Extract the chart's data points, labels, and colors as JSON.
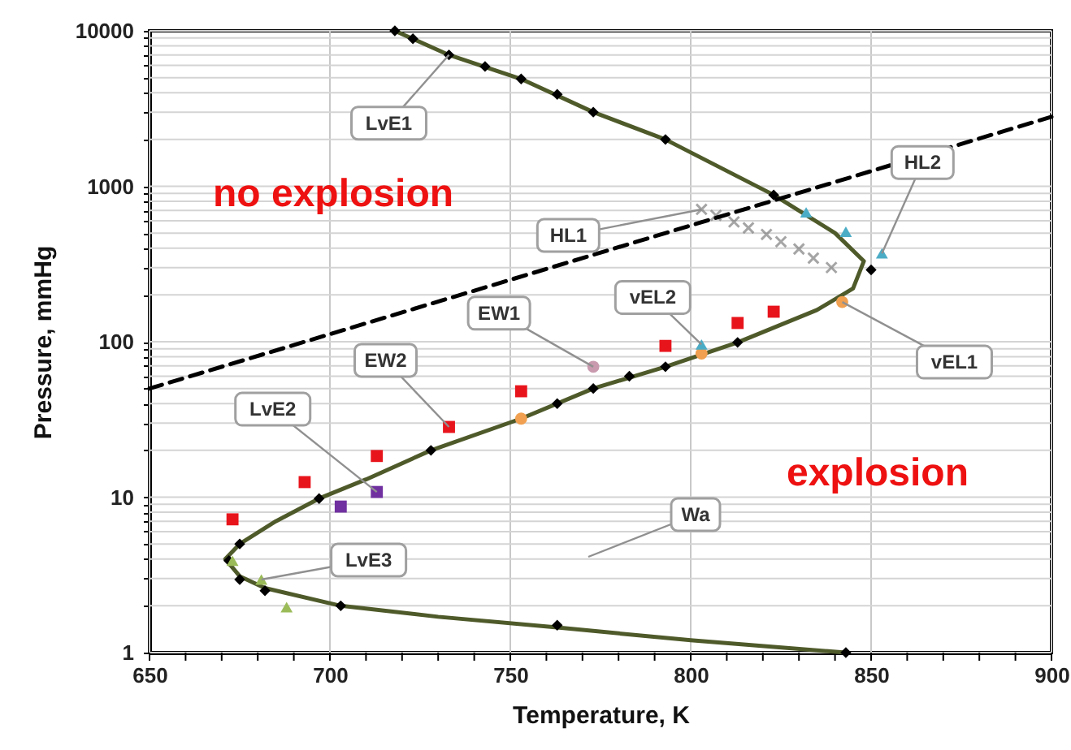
{
  "chart_data": {
    "type": "scatter",
    "xlabel": "Temperature, K",
    "ylabel": "Pressure, mmHg",
    "log": "y",
    "grid": true,
    "xlim": [
      650,
      900
    ],
    "ylim": [
      1,
      10000
    ],
    "xticks": [
      650,
      {
        "value": 660,
        "label": null
      },
      {
        "value": 670,
        "label": null
      },
      {
        "value": 680,
        "label": null
      },
      {
        "value": 690,
        "label": null
      },
      700,
      {
        "value": 710,
        "label": null
      },
      {
        "value": 720,
        "label": null
      },
      {
        "value": 730,
        "label": null
      },
      {
        "value": 740,
        "label": null
      },
      750,
      {
        "value": 760,
        "label": null
      },
      {
        "value": 770,
        "label": null
      },
      {
        "value": 780,
        "label": null
      },
      {
        "value": 790,
        "label": null
      },
      800,
      {
        "value": 810,
        "label": null
      },
      {
        "value": 820,
        "label": null
      },
      {
        "value": 830,
        "label": null
      },
      {
        "value": 840,
        "label": null
      },
      850,
      {
        "value": 860,
        "label": null
      },
      {
        "value": 870,
        "label": null
      },
      {
        "value": 880,
        "label": null
      },
      {
        "value": 890,
        "label": null
      },
      900
    ],
    "yticks": [
      1,
      {
        "value": 2,
        "label": null
      },
      {
        "value": 3,
        "label": null
      },
      {
        "value": 4,
        "label": null
      },
      {
        "value": 5,
        "label": null
      },
      {
        "value": 6,
        "label": null
      },
      {
        "value": 7,
        "label": null
      },
      {
        "value": 8,
        "label": null
      },
      {
        "value": 9,
        "label": null
      },
      10,
      {
        "value": 20,
        "label": null
      },
      {
        "value": 30,
        "label": null
      },
      {
        "value": 40,
        "label": null
      },
      {
        "value": 50,
        "label": null
      },
      {
        "value": 60,
        "label": null
      },
      {
        "value": 70,
        "label": null
      },
      {
        "value": 80,
        "label": null
      },
      {
        "value": 90,
        "label": null
      },
      100,
      {
        "value": 200,
        "label": null
      },
      {
        "value": 300,
        "label": null
      },
      {
        "value": 400,
        "label": null
      },
      {
        "value": 500,
        "label": null
      },
      {
        "value": 600,
        "label": null
      },
      {
        "value": 700,
        "label": null
      },
      {
        "value": 800,
        "label": null
      },
      {
        "value": 900,
        "label": null
      },
      1000,
      {
        "value": 2000,
        "label": null
      },
      {
        "value": 3000,
        "label": null
      },
      {
        "value": 4000,
        "label": null
      },
      {
        "value": 5000,
        "label": null
      },
      {
        "value": 6000,
        "label": null
      },
      {
        "value": 7000,
        "label": null
      },
      {
        "value": 8000,
        "label": null
      },
      {
        "value": 9000,
        "label": null
      },
      10000
    ],
    "series": [
      {
        "type": "line",
        "color": "#4f5a2a",
        "marker": "none",
        "line_style": "solid",
        "x": [
          718,
          733,
          753,
          773,
          793,
          823,
          840,
          848,
          845,
          835,
          813,
          793,
          773,
          753,
          728,
          710,
          697,
          685,
          675,
          671,
          675,
          682,
          703,
          730,
          763,
          800,
          843
        ],
        "values": [
          10000,
          7000,
          4900,
          3000,
          2000,
          880,
          500,
          330,
          220,
          160,
          99,
          69,
          50,
          32,
          20,
          13,
          9.8,
          7,
          5,
          4,
          3.1,
          2.6,
          2.0,
          1.7,
          1.45,
          1.2,
          1
        ]
      },
      {
        "color": "#000000",
        "marker": "diamond",
        "x": [
          718,
          723,
          733,
          743,
          753,
          763,
          773,
          793,
          823,
          850,
          813,
          793,
          783,
          773,
          763,
          728,
          697,
          675,
          672,
          675,
          682,
          703,
          763,
          843
        ],
        "values": [
          10000,
          8900,
          7000,
          5900,
          4900,
          3900,
          3000,
          2000,
          880,
          290,
          99,
          69,
          60,
          50,
          40,
          20,
          9.8,
          5.0,
          3.9,
          2.95,
          2.5,
          2.0,
          1.5,
          1
        ]
      },
      {
        "color": "#e8141c",
        "marker": "square",
        "x": [
          673,
          693,
          713,
          733,
          753,
          793,
          813,
          823
        ],
        "values": [
          7.2,
          12.5,
          18.4,
          28.3,
          48,
          94,
          132,
          156
        ]
      },
      {
        "color": "#7030a0",
        "marker": "square",
        "x": [
          703,
          713
        ],
        "values": [
          8.7,
          10.8
        ]
      },
      {
        "color": "#c99aae",
        "marker": "circle",
        "x": [
          773
        ],
        "values": [
          69
        ]
      },
      {
        "color": "#f0a050",
        "marker": "circle",
        "x": [
          753,
          803,
          842
        ],
        "values": [
          32,
          84,
          180
        ]
      },
      {
        "color": "#4bacc6",
        "marker": "triangle",
        "x": [
          803,
          832,
          843,
          853
        ],
        "values": [
          96,
          680,
          510,
          370
        ]
      },
      {
        "color": "#9bbb59",
        "marker": "triangle",
        "x": [
          673,
          681,
          688
        ],
        "values": [
          3.9,
          2.95,
          1.96
        ]
      },
      {
        "color": "#808080",
        "marker": "cross",
        "x": [
          803,
          807,
          812,
          816,
          821,
          825,
          830,
          834,
          839
        ],
        "values": [
          710,
          650,
          590,
          540,
          490,
          440,
          395,
          345,
          300
        ]
      },
      {
        "type": "line",
        "color": "#000000",
        "marker": "none",
        "line_style": "dashed",
        "x": [
          650,
          900
        ],
        "values": [
          50,
          2800
        ]
      }
    ],
    "annotations": [
      {
        "text": "LvE1",
        "x": 733,
        "y": 7000
      },
      {
        "text": "HL1",
        "x": 803,
        "y": 710
      },
      {
        "text": "EW1",
        "x": 773,
        "y": 69
      },
      {
        "text": "EW2",
        "x": 733,
        "y": 28.3
      },
      {
        "text": "LvE2",
        "x": 713,
        "y": 10.8
      },
      {
        "text": "LvE3",
        "x": 681,
        "y": 2.95
      },
      {
        "text": "vEL2",
        "x": 803,
        "y": 96
      },
      {
        "text": "vEL1",
        "x": 842,
        "y": 180
      },
      {
        "text": "HL2",
        "x": 853,
        "y": 370
      },
      "Wa",
      "no explosion",
      "explosion"
    ]
  }
}
